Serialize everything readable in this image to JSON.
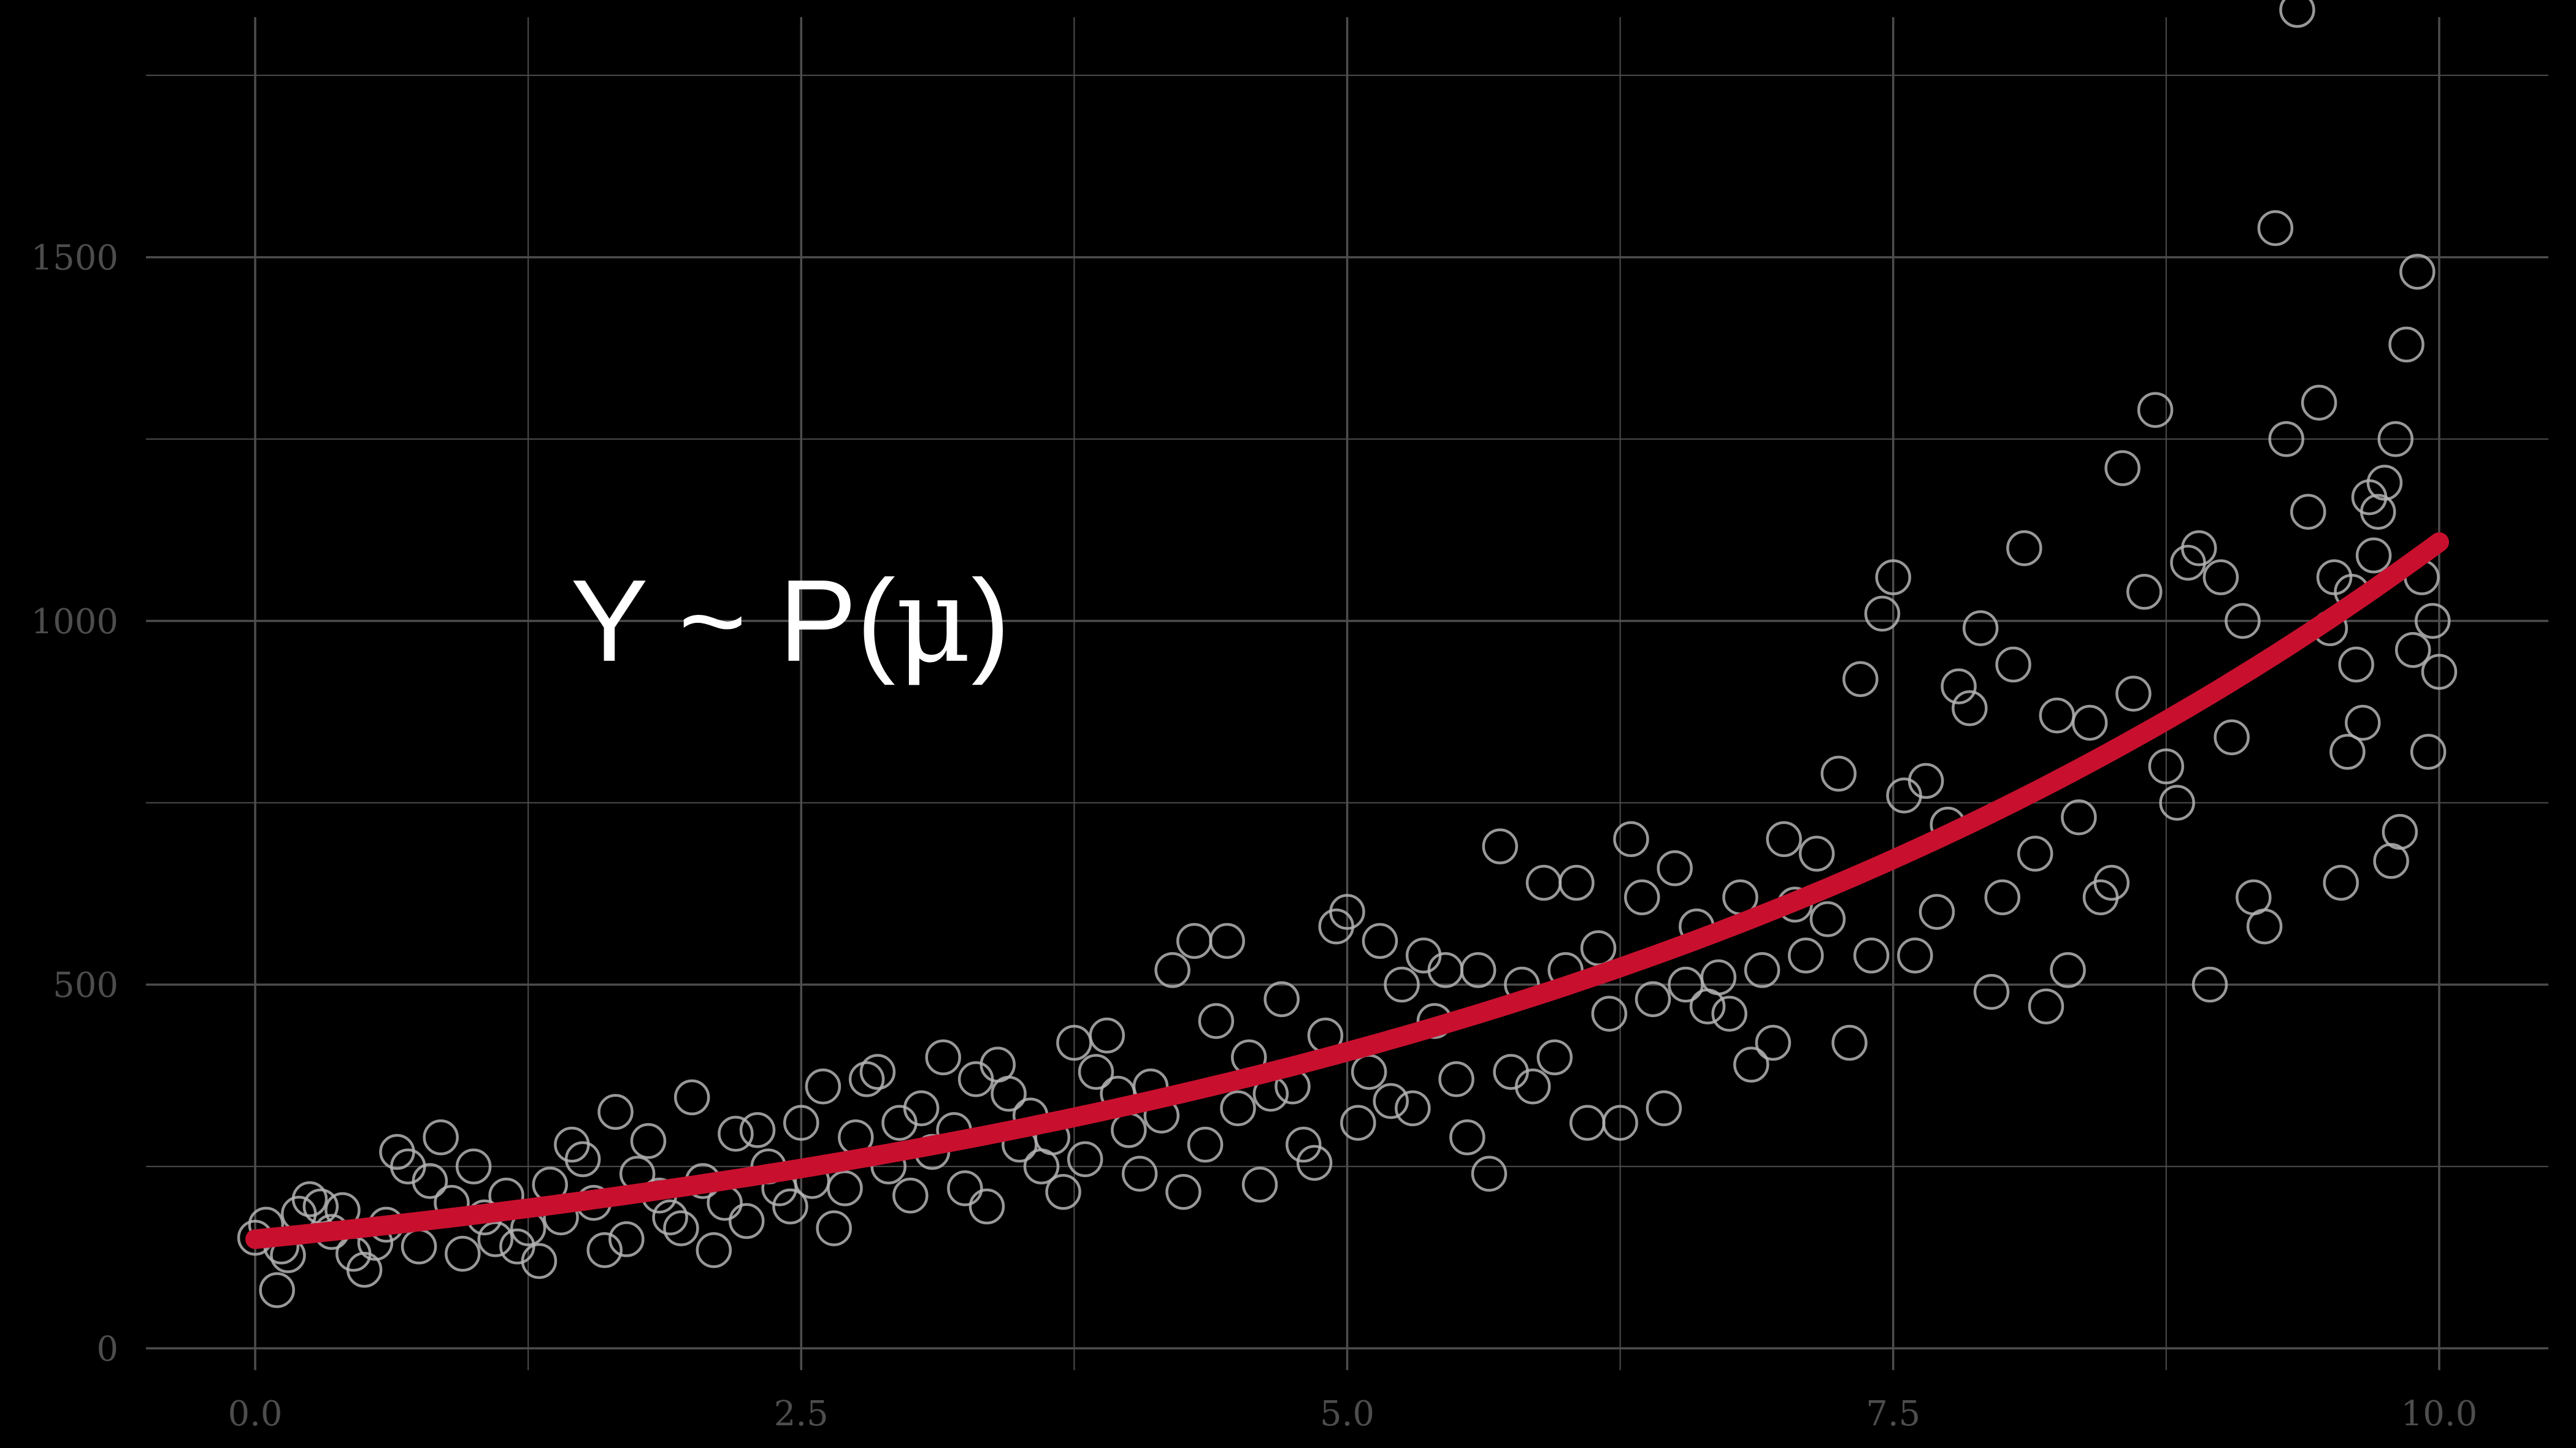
{
  "chart_data": {
    "type": "scatter",
    "title": "",
    "xlabel": "",
    "ylabel": "",
    "xlim": [
      -0.5,
      10.5
    ],
    "ylim": [
      -30,
      1830
    ],
    "x_major_ticks": [
      0.0,
      2.5,
      5.0,
      7.5,
      10.0
    ],
    "x_tick_labels": [
      "0.0",
      "2.5",
      "5.0",
      "7.5",
      "10.0"
    ],
    "x_minor_ticks": [
      1.25,
      3.75,
      6.25,
      8.75
    ],
    "y_major_ticks": [
      0,
      500,
      1000,
      1500
    ],
    "y_tick_labels": [
      "0",
      "500",
      "1000",
      "1500"
    ],
    "y_minor_ticks": [
      250,
      750,
      1250,
      1750
    ],
    "grid": true,
    "legend": "none",
    "annotation": {
      "prefix": "Y ~ P",
      "open_paren": "(",
      "symbol": "μ",
      "close_paren": ")",
      "x": 1.5,
      "y": 1000
    },
    "colors": {
      "background": "#000000",
      "grid": "#4d4d4d",
      "tick_label": "#4d4d4d",
      "points": "#b3b3b3",
      "fit_line": "#c8102e"
    },
    "fit_line": {
      "model": "exponential",
      "a": 150,
      "b": 0.2
    },
    "series": [
      {
        "points": [
          [
            0.0,
            152
          ],
          [
            0.05,
            170
          ],
          [
            0.1,
            80
          ],
          [
            0.12,
            140
          ],
          [
            0.15,
            128
          ],
          [
            0.2,
            185
          ],
          [
            0.25,
            205
          ],
          [
            0.3,
            195
          ],
          [
            0.35,
            160
          ],
          [
            0.4,
            190
          ],
          [
            0.45,
            130
          ],
          [
            0.5,
            108
          ],
          [
            0.55,
            145
          ],
          [
            0.6,
            170
          ],
          [
            0.65,
            270
          ],
          [
            0.7,
            250
          ],
          [
            0.75,
            140
          ],
          [
            0.8,
            230
          ],
          [
            0.85,
            290
          ],
          [
            0.9,
            200
          ],
          [
            0.95,
            130
          ],
          [
            1.0,
            250
          ],
          [
            1.05,
            180
          ],
          [
            1.1,
            150
          ],
          [
            1.15,
            210
          ],
          [
            1.2,
            140
          ],
          [
            1.25,
            165
          ],
          [
            1.3,
            120
          ],
          [
            1.35,
            225
          ],
          [
            1.4,
            180
          ],
          [
            1.45,
            280
          ],
          [
            1.5,
            260
          ],
          [
            1.55,
            200
          ],
          [
            1.6,
            135
          ],
          [
            1.65,
            325
          ],
          [
            1.7,
            150
          ],
          [
            1.75,
            240
          ],
          [
            1.8,
            285
          ],
          [
            1.85,
            210
          ],
          [
            1.9,
            180
          ],
          [
            1.95,
            165
          ],
          [
            2.0,
            345
          ],
          [
            2.05,
            230
          ],
          [
            2.1,
            135
          ],
          [
            2.15,
            200
          ],
          [
            2.2,
            295
          ],
          [
            2.25,
            175
          ],
          [
            2.3,
            300
          ],
          [
            2.35,
            250
          ],
          [
            2.4,
            220
          ],
          [
            2.45,
            195
          ],
          [
            2.5,
            310
          ],
          [
            2.55,
            230
          ],
          [
            2.6,
            360
          ],
          [
            2.65,
            165
          ],
          [
            2.7,
            220
          ],
          [
            2.75,
            290
          ],
          [
            2.8,
            370
          ],
          [
            2.85,
            380
          ],
          [
            2.9,
            250
          ],
          [
            2.95,
            310
          ],
          [
            3.0,
            210
          ],
          [
            3.05,
            330
          ],
          [
            3.1,
            270
          ],
          [
            3.15,
            400
          ],
          [
            3.2,
            300
          ],
          [
            3.25,
            220
          ],
          [
            3.3,
            370
          ],
          [
            3.35,
            195
          ],
          [
            3.4,
            390
          ],
          [
            3.45,
            350
          ],
          [
            3.5,
            280
          ],
          [
            3.55,
            320
          ],
          [
            3.6,
            250
          ],
          [
            3.65,
            290
          ],
          [
            3.7,
            215
          ],
          [
            3.75,
            420
          ],
          [
            3.8,
            260
          ],
          [
            3.85,
            380
          ],
          [
            3.9,
            430
          ],
          [
            3.95,
            350
          ],
          [
            4.0,
            300
          ],
          [
            4.05,
            240
          ],
          [
            4.1,
            360
          ],
          [
            4.15,
            320
          ],
          [
            4.2,
            520
          ],
          [
            4.25,
            215
          ],
          [
            4.3,
            560
          ],
          [
            4.35,
            280
          ],
          [
            4.4,
            450
          ],
          [
            4.45,
            560
          ],
          [
            4.5,
            330
          ],
          [
            4.55,
            400
          ],
          [
            4.6,
            225
          ],
          [
            4.65,
            350
          ],
          [
            4.7,
            480
          ],
          [
            4.75,
            360
          ],
          [
            4.8,
            280
          ],
          [
            4.85,
            255
          ],
          [
            4.9,
            430
          ],
          [
            4.95,
            580
          ],
          [
            5.0,
            600
          ],
          [
            5.05,
            310
          ],
          [
            5.1,
            380
          ],
          [
            5.15,
            560
          ],
          [
            5.2,
            340
          ],
          [
            5.25,
            500
          ],
          [
            5.3,
            330
          ],
          [
            5.35,
            540
          ],
          [
            5.4,
            450
          ],
          [
            5.45,
            520
          ],
          [
            5.5,
            370
          ],
          [
            5.55,
            290
          ],
          [
            5.6,
            520
          ],
          [
            5.65,
            240
          ],
          [
            5.7,
            690
          ],
          [
            5.75,
            380
          ],
          [
            5.8,
            500
          ],
          [
            5.85,
            360
          ],
          [
            5.9,
            640
          ],
          [
            5.95,
            400
          ],
          [
            6.0,
            520
          ],
          [
            6.05,
            640
          ],
          [
            6.1,
            310
          ],
          [
            6.15,
            550
          ],
          [
            6.2,
            460
          ],
          [
            6.25,
            310
          ],
          [
            6.3,
            700
          ],
          [
            6.35,
            620
          ],
          [
            6.4,
            480
          ],
          [
            6.45,
            330
          ],
          [
            6.5,
            660
          ],
          [
            6.55,
            500
          ],
          [
            6.6,
            580
          ],
          [
            6.65,
            470
          ],
          [
            6.7,
            510
          ],
          [
            6.75,
            460
          ],
          [
            6.8,
            620
          ],
          [
            6.85,
            390
          ],
          [
            6.9,
            520
          ],
          [
            6.95,
            420
          ],
          [
            7.0,
            700
          ],
          [
            7.05,
            610
          ],
          [
            7.1,
            540
          ],
          [
            7.15,
            680
          ],
          [
            7.2,
            590
          ],
          [
            7.25,
            790
          ],
          [
            7.3,
            420
          ],
          [
            7.35,
            920
          ],
          [
            7.4,
            540
          ],
          [
            7.45,
            1010
          ],
          [
            7.5,
            1060
          ],
          [
            7.55,
            760
          ],
          [
            7.6,
            540
          ],
          [
            7.65,
            780
          ],
          [
            7.7,
            600
          ],
          [
            7.75,
            720
          ],
          [
            7.8,
            910
          ],
          [
            7.85,
            880
          ],
          [
            7.9,
            990
          ],
          [
            7.95,
            490
          ],
          [
            8.0,
            620
          ],
          [
            8.05,
            940
          ],
          [
            8.1,
            1100
          ],
          [
            8.15,
            680
          ],
          [
            8.2,
            470
          ],
          [
            8.25,
            870
          ],
          [
            8.3,
            520
          ],
          [
            8.35,
            730
          ],
          [
            8.4,
            860
          ],
          [
            8.45,
            620
          ],
          [
            8.5,
            640
          ],
          [
            8.55,
            1210
          ],
          [
            8.6,
            900
          ],
          [
            8.65,
            1040
          ],
          [
            8.7,
            1290
          ],
          [
            8.75,
            800
          ],
          [
            8.8,
            750
          ],
          [
            8.85,
            1080
          ],
          [
            8.9,
            1100
          ],
          [
            8.95,
            500
          ],
          [
            9.0,
            1060
          ],
          [
            9.05,
            840
          ],
          [
            9.1,
            1000
          ],
          [
            9.15,
            620
          ],
          [
            9.2,
            580
          ],
          [
            9.25,
            1540
          ],
          [
            9.3,
            1250
          ],
          [
            9.35,
            1840
          ],
          [
            9.4,
            1150
          ],
          [
            9.45,
            1300
          ],
          [
            9.5,
            990
          ],
          [
            9.55,
            640
          ],
          [
            9.6,
            1040
          ],
          [
            9.65,
            860
          ],
          [
            9.7,
            1090
          ],
          [
            9.75,
            1190
          ],
          [
            9.8,
            1250
          ],
          [
            9.85,
            1380
          ],
          [
            9.9,
            1480
          ],
          [
            9.95,
            820
          ],
          [
            10.0,
            930
          ],
          [
            9.92,
            1060
          ],
          [
            9.97,
            1000
          ],
          [
            9.88,
            960
          ],
          [
            9.82,
            710
          ],
          [
            9.78,
            670
          ],
          [
            9.72,
            1150
          ],
          [
            9.68,
            1170
          ],
          [
            9.62,
            940
          ],
          [
            9.58,
            820
          ],
          [
            9.52,
            1060
          ]
        ]
      }
    ]
  }
}
